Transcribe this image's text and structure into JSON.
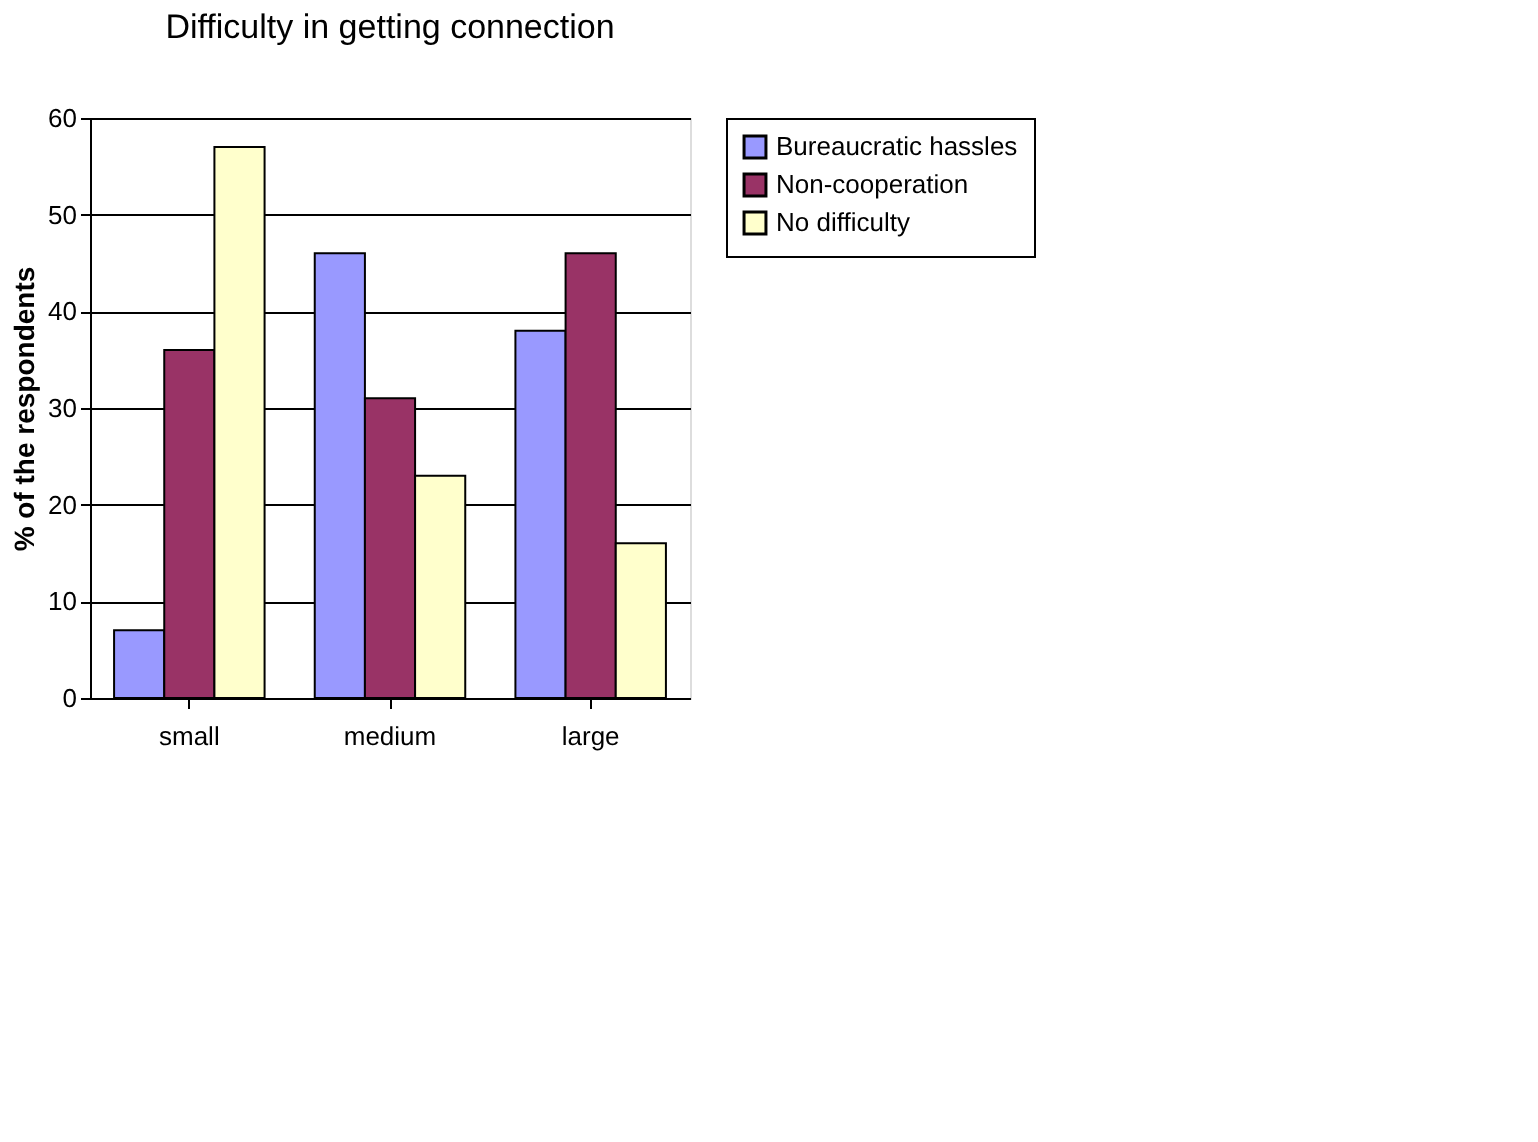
{
  "chart_data": {
    "type": "bar",
    "title": "Difficulty in getting connection",
    "ylabel": "% of the respondents",
    "categories": [
      "small",
      "medium",
      "large"
    ],
    "series": [
      {
        "name": "Bureaucratic hassles",
        "color": "#9999ff",
        "values": [
          7,
          46,
          38
        ]
      },
      {
        "name": "Non-cooperation",
        "color": "#993366",
        "values": [
          36,
          31,
          46
        ]
      },
      {
        "name": "No difficulty",
        "color": "#ffffcc",
        "values": [
          57,
          23,
          16
        ]
      }
    ],
    "ylim": [
      0,
      60
    ],
    "yticks": [
      0,
      10,
      20,
      30,
      40,
      50,
      60
    ],
    "grid": "y",
    "legend": "right"
  }
}
